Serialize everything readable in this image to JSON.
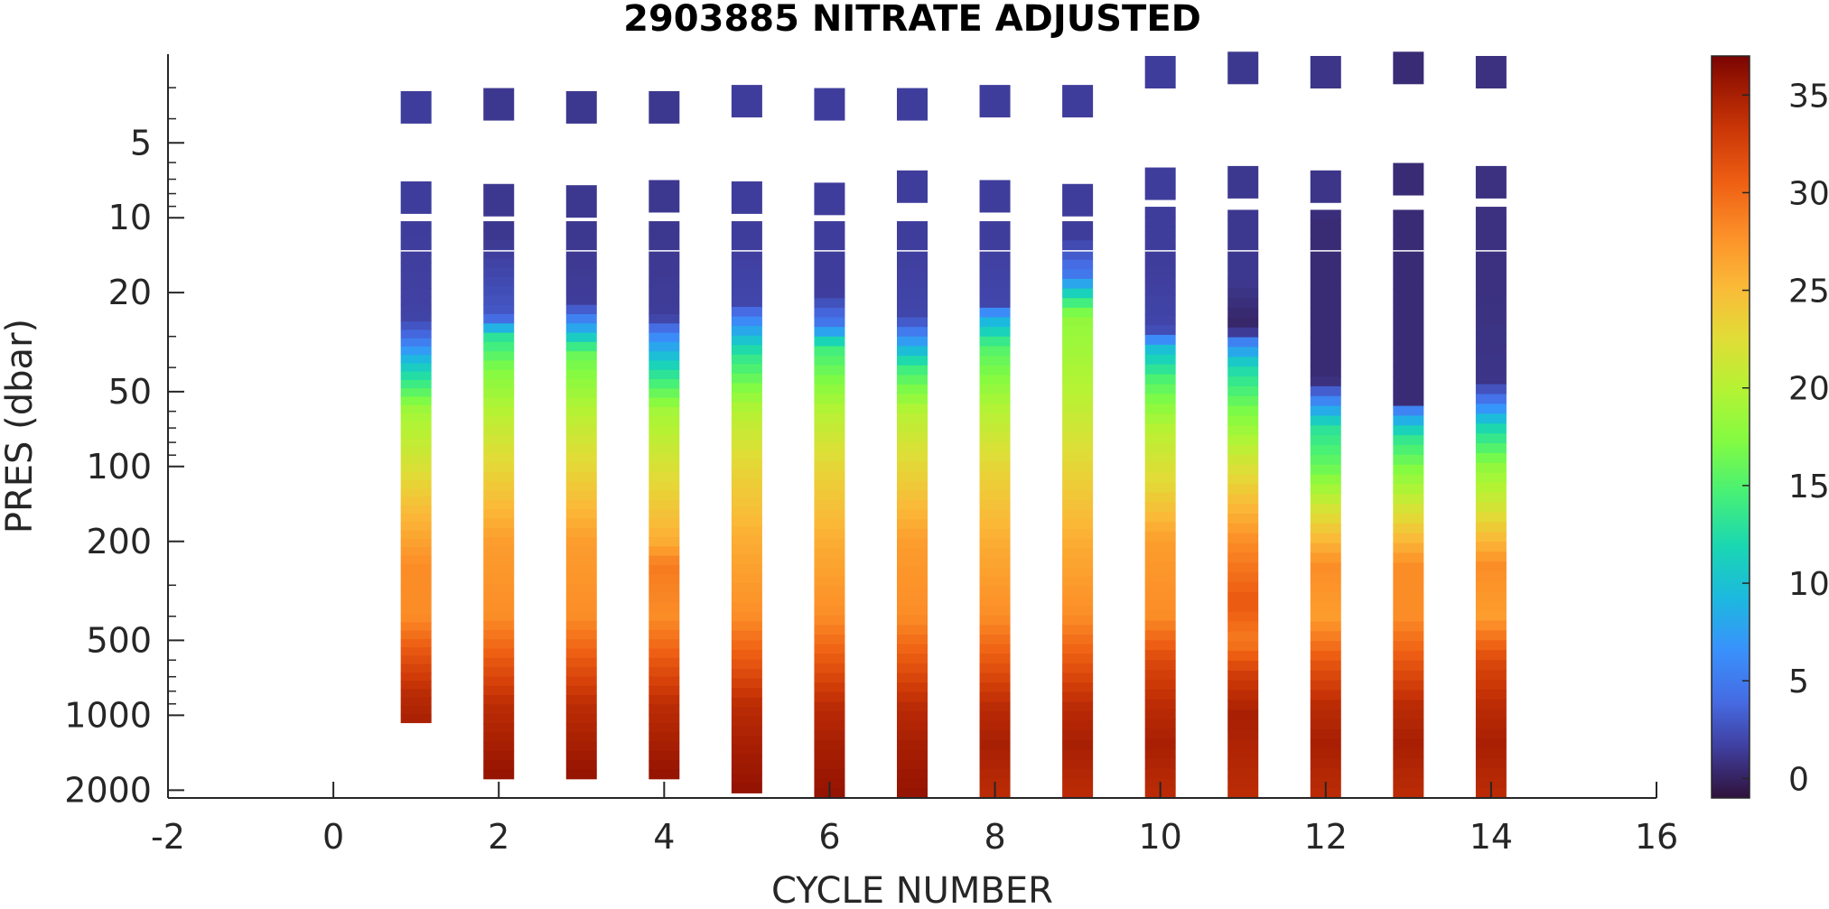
{
  "chart_data": {
    "type": "heatmap",
    "title": "2903885  NITRATE ADJUSTED",
    "xlabel": "CYCLE NUMBER",
    "ylabel": "PRES (dbar)",
    "xlim": [
      -2,
      16
    ],
    "x_ticks": [
      -2,
      0,
      2,
      4,
      6,
      8,
      10,
      12,
      14,
      16
    ],
    "y_scale": "log",
    "y_reversed": true,
    "ylim": [
      2.2,
      2150
    ],
    "y_ticks": [
      5,
      10,
      20,
      50,
      100,
      200,
      500,
      1000,
      2000
    ],
    "colorbar": {
      "colormap": "turbo",
      "clim": [
        -1,
        37
      ],
      "ticks": [
        0,
        5,
        10,
        15,
        20,
        25,
        30,
        35
      ]
    },
    "grid": false,
    "profiles": [
      {
        "cycle": 1,
        "max_pres": 1070,
        "points": [
          [
            3.6,
            1.5
          ],
          [
            8.3,
            1.5
          ],
          [
            12,
            1.5
          ],
          [
            25,
            1.8
          ],
          [
            30,
            4
          ],
          [
            40,
            11
          ],
          [
            60,
            19
          ],
          [
            100,
            22
          ],
          [
            150,
            25
          ],
          [
            250,
            28
          ],
          [
            400,
            28
          ],
          [
            550,
            31
          ],
          [
            800,
            34
          ],
          [
            1070,
            35
          ]
        ]
      },
      {
        "cycle": 2,
        "max_pres": 1800,
        "points": [
          [
            3.5,
            1.2
          ],
          [
            8.5,
            1.2
          ],
          [
            12,
            1.2
          ],
          [
            25,
            3
          ],
          [
            30,
            13
          ],
          [
            40,
            17
          ],
          [
            60,
            20
          ],
          [
            100,
            23
          ],
          [
            200,
            27
          ],
          [
            400,
            28
          ],
          [
            600,
            31
          ],
          [
            900,
            34
          ],
          [
            1300,
            35
          ],
          [
            1800,
            36
          ]
        ]
      },
      {
        "cycle": 3,
        "max_pres": 1800,
        "points": [
          [
            3.6,
            1.2
          ],
          [
            8.6,
            1.2
          ],
          [
            12,
            1.2
          ],
          [
            22,
            1.5
          ],
          [
            27,
            7
          ],
          [
            35,
            16
          ],
          [
            60,
            20
          ],
          [
            100,
            23
          ],
          [
            200,
            27
          ],
          [
            400,
            28
          ],
          [
            600,
            31
          ],
          [
            900,
            34
          ],
          [
            1300,
            35
          ],
          [
            1800,
            36
          ]
        ]
      },
      {
        "cycle": 4,
        "max_pres": 1800,
        "points": [
          [
            3.6,
            1.2
          ],
          [
            8.2,
            1.2
          ],
          [
            12,
            1.2
          ],
          [
            25,
            1.5
          ],
          [
            30,
            6
          ],
          [
            40,
            12
          ],
          [
            60,
            19
          ],
          [
            100,
            22
          ],
          [
            200,
            26
          ],
          [
            250,
            29
          ],
          [
            400,
            28
          ],
          [
            600,
            31
          ],
          [
            900,
            34
          ],
          [
            1300,
            35
          ],
          [
            1800,
            36
          ]
        ]
      },
      {
        "cycle": 5,
        "max_pres": 2050,
        "points": [
          [
            3.4,
            1.5
          ],
          [
            8.3,
            1.5
          ],
          [
            12,
            1.5
          ],
          [
            22,
            2
          ],
          [
            26,
            6
          ],
          [
            35,
            13
          ],
          [
            60,
            20
          ],
          [
            100,
            23
          ],
          [
            200,
            26
          ],
          [
            400,
            28
          ],
          [
            600,
            31
          ],
          [
            900,
            34
          ],
          [
            1300,
            35
          ],
          [
            2050,
            36
          ]
        ]
      },
      {
        "cycle": 6,
        "max_pres": 2200,
        "points": [
          [
            3.5,
            1.5
          ],
          [
            8.4,
            1.5
          ],
          [
            12,
            1.5
          ],
          [
            20,
            1.5
          ],
          [
            27,
            5
          ],
          [
            33,
            14
          ],
          [
            60,
            20
          ],
          [
            100,
            23
          ],
          [
            200,
            26
          ],
          [
            400,
            28
          ],
          [
            600,
            31
          ],
          [
            900,
            34
          ],
          [
            1300,
            35
          ],
          [
            2200,
            36
          ]
        ]
      },
      {
        "cycle": 7,
        "max_pres": 2200,
        "points": [
          [
            3.5,
            1.5
          ],
          [
            7.5,
            1.5
          ],
          [
            12,
            1.5
          ],
          [
            25,
            2
          ],
          [
            30,
            6
          ],
          [
            40,
            14
          ],
          [
            60,
            20
          ],
          [
            100,
            23
          ],
          [
            200,
            27
          ],
          [
            400,
            28
          ],
          [
            600,
            31
          ],
          [
            900,
            34
          ],
          [
            1300,
            35
          ],
          [
            2200,
            36
          ]
        ]
      },
      {
        "cycle": 8,
        "max_pres": 2150,
        "points": [
          [
            3.4,
            1.5
          ],
          [
            8.2,
            1.5
          ],
          [
            12,
            1.5
          ],
          [
            22,
            2
          ],
          [
            25,
            8
          ],
          [
            33,
            15
          ],
          [
            60,
            20
          ],
          [
            100,
            23
          ],
          [
            200,
            26
          ],
          [
            400,
            28
          ],
          [
            600,
            31
          ],
          [
            900,
            34
          ],
          [
            1300,
            35
          ],
          [
            2150,
            34
          ]
        ]
      },
      {
        "cycle": 9,
        "max_pres": 2150,
        "points": [
          [
            3.4,
            1.5
          ],
          [
            8.5,
            1.5
          ],
          [
            12,
            1.5
          ],
          [
            17,
            5
          ],
          [
            21,
            13
          ],
          [
            25,
            18
          ],
          [
            50,
            20
          ],
          [
            100,
            23
          ],
          [
            200,
            26
          ],
          [
            400,
            28
          ],
          [
            600,
            31
          ],
          [
            900,
            34
          ],
          [
            1300,
            35
          ],
          [
            2150,
            34
          ]
        ]
      },
      {
        "cycle": 10,
        "max_pres": 2150,
        "points": [
          [
            2.6,
            1.5
          ],
          [
            7.3,
            1.5
          ],
          [
            10.5,
            1.5
          ],
          [
            16,
            1.5
          ],
          [
            28,
            2
          ],
          [
            34,
            10
          ],
          [
            45,
            15
          ],
          [
            70,
            20
          ],
          [
            120,
            23
          ],
          [
            200,
            27
          ],
          [
            400,
            28
          ],
          [
            600,
            32
          ],
          [
            900,
            34
          ],
          [
            1300,
            35
          ],
          [
            2150,
            34
          ]
        ]
      },
      {
        "cycle": 11,
        "max_pres": 2150,
        "points": [
          [
            2.5,
            1.2
          ],
          [
            7.2,
            1.2
          ],
          [
            10.8,
            1.2
          ],
          [
            18,
            1.2
          ],
          [
            28,
            0
          ],
          [
            32,
            6
          ],
          [
            40,
            12
          ],
          [
            60,
            17
          ],
          [
            100,
            22
          ],
          [
            200,
            28
          ],
          [
            350,
            31
          ],
          [
            500,
            29
          ],
          [
            700,
            33
          ],
          [
            1000,
            35
          ],
          [
            2150,
            34
          ]
        ]
      },
      {
        "cycle": 12,
        "max_pres": 2150,
        "points": [
          [
            2.6,
            1
          ],
          [
            7.5,
            1
          ],
          [
            10.8,
            0.5
          ],
          [
            20,
            0.5
          ],
          [
            45,
            0.5
          ],
          [
            55,
            6
          ],
          [
            70,
            13
          ],
          [
            100,
            16
          ],
          [
            150,
            22
          ],
          [
            250,
            28
          ],
          [
            400,
            27
          ],
          [
            600,
            31
          ],
          [
            900,
            34
          ],
          [
            1300,
            35
          ],
          [
            2150,
            34
          ]
        ]
      },
      {
        "cycle": 13,
        "max_pres": 2150,
        "points": [
          [
            2.5,
            0.5
          ],
          [
            7,
            0.5
          ],
          [
            10.8,
            0.5
          ],
          [
            20,
            0.5
          ],
          [
            55,
            0.5
          ],
          [
            60,
            6
          ],
          [
            75,
            13
          ],
          [
            100,
            17
          ],
          [
            150,
            22
          ],
          [
            250,
            28
          ],
          [
            400,
            28
          ],
          [
            600,
            31
          ],
          [
            900,
            34
          ],
          [
            1300,
            35
          ],
          [
            2150,
            34
          ]
        ]
      },
      {
        "cycle": 14,
        "max_pres": 2150,
        "points": [
          [
            2.6,
            0.8
          ],
          [
            7.2,
            0.8
          ],
          [
            10.5,
            0.8
          ],
          [
            20,
            0.8
          ],
          [
            45,
            1
          ],
          [
            55,
            5
          ],
          [
            70,
            12
          ],
          [
            100,
            18
          ],
          [
            150,
            22
          ],
          [
            250,
            28
          ],
          [
            400,
            27
          ],
          [
            600,
            32
          ],
          [
            900,
            34
          ],
          [
            1300,
            35
          ],
          [
            2150,
            34
          ]
        ]
      }
    ]
  }
}
